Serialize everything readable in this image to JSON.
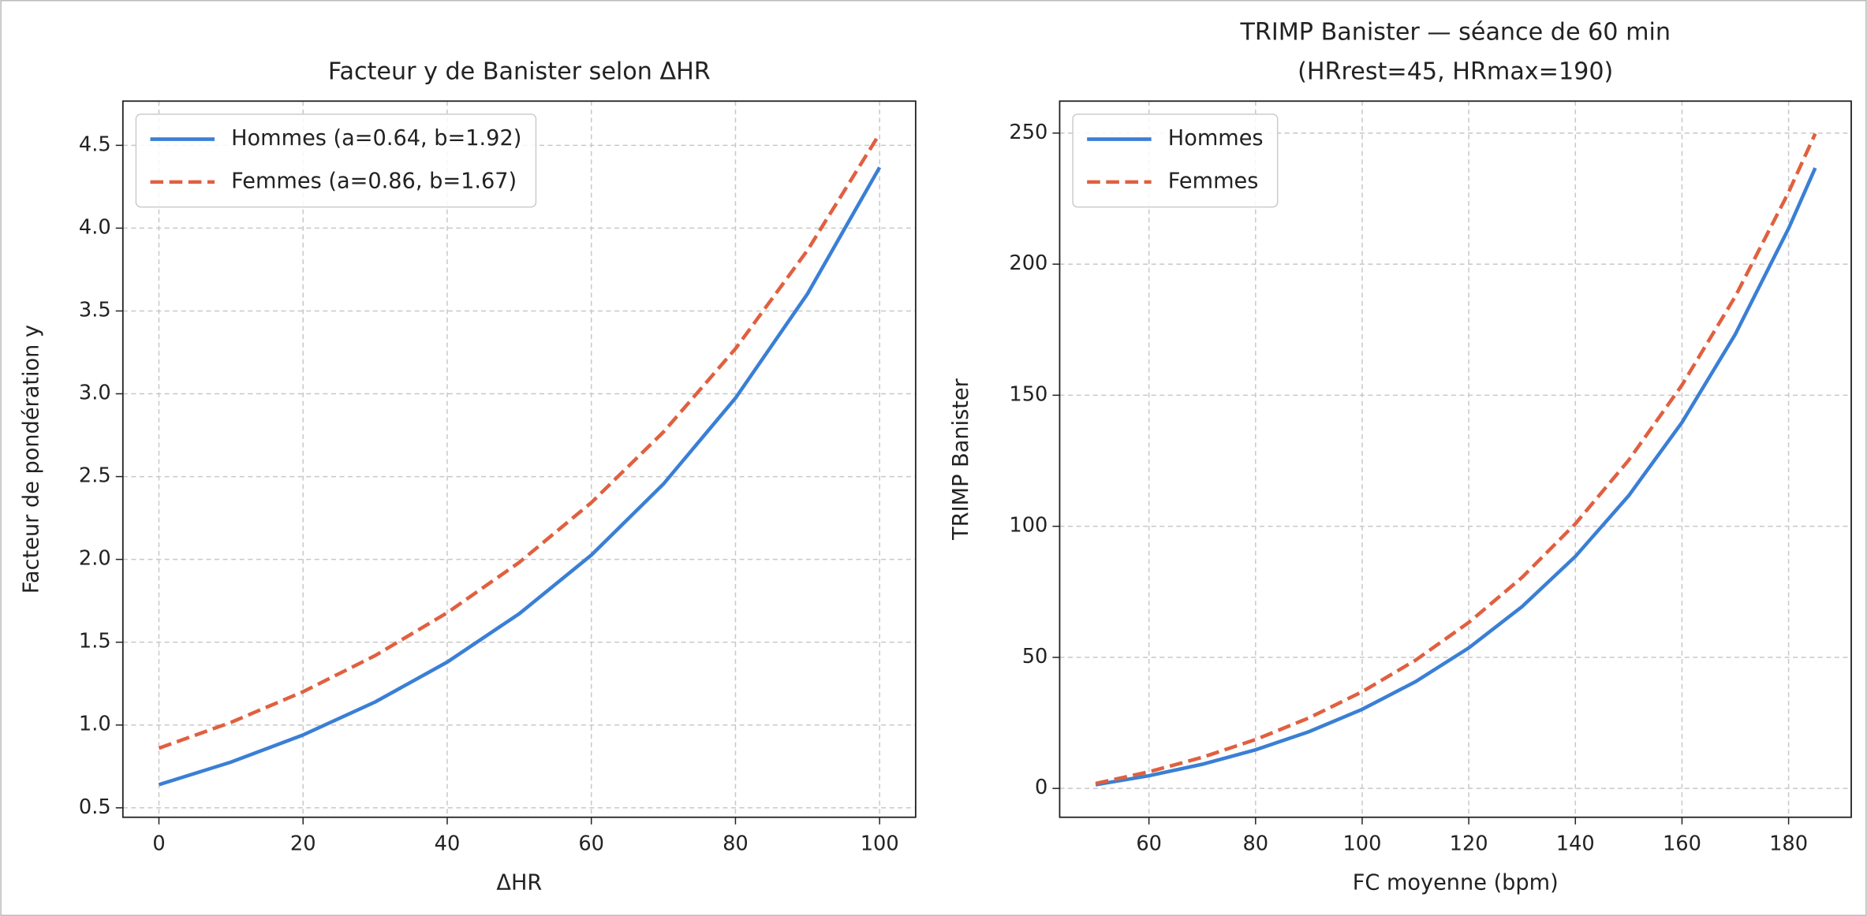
{
  "chart_data": [
    {
      "type": "line",
      "title": "Facteur y de Banister selon ΔHR",
      "xlabel": "ΔHR",
      "ylabel": "Facteur de pondération y",
      "x": [
        0,
        10,
        20,
        30,
        40,
        50,
        60,
        70,
        80,
        90,
        100
      ],
      "series": [
        {
          "name": "Hommes (a=0.64, b=1.92)",
          "color": "#3a7fd5",
          "linestyle": "solid",
          "values": [
            0.64,
            0.776,
            0.94,
            1.139,
            1.38,
            1.672,
            2.026,
            2.455,
            2.974,
            3.604,
            4.367
          ]
        },
        {
          "name": "Femmes (a=0.86, b=1.67)",
          "color": "#e0603f",
          "linestyle": "dashed",
          "values": [
            0.86,
            1.016,
            1.201,
            1.419,
            1.678,
            1.982,
            2.343,
            2.769,
            3.272,
            3.867,
            4.57
          ]
        }
      ],
      "xlim": [
        -5,
        105
      ],
      "ylim": [
        0.443,
        4.767
      ],
      "xticks": [
        0,
        20,
        40,
        60,
        80,
        100
      ],
      "yticks": [
        0.5,
        {
          "value": 1,
          "label": "1.0"
        },
        1.5,
        {
          "value": 2,
          "label": "2.0"
        },
        2.5,
        {
          "value": 3,
          "label": "3.0"
        },
        3.5,
        {
          "value": 4,
          "label": "4.0"
        },
        4.5
      ],
      "grid": true,
      "legend": "upper-left"
    },
    {
      "type": "line",
      "title": "TRIMP Banister — séance de 60 min",
      "subtitle": "(HRrest=45, HRmax=190)",
      "xlabel": "FC moyenne (bpm)",
      "ylabel": "TRIMP Banister",
      "x": [
        50,
        60,
        70,
        80,
        90,
        100,
        110,
        120,
        130,
        140,
        150,
        160,
        170,
        180,
        185
      ],
      "series": [
        {
          "name": "Hommes",
          "color": "#3a7fd5",
          "linestyle": "solid",
          "values": [
            1.415,
            4.845,
            9.219,
            14.73,
            21.63,
            30.18,
            40.71,
            53.62,
            69.37,
            88.51,
            111.68,
            139.63,
            173.26,
            213.62,
            236.7
          ]
        },
        {
          "name": "Femmes",
          "color": "#e0603f",
          "linestyle": "dashed",
          "values": [
            1.885,
            6.345,
            11.866,
            18.64,
            26.89,
            36.88,
            48.9,
            63.31,
            80.51,
            100.97,
            125.22,
            153.88,
            187.69,
            227.45,
            249.8
          ]
        }
      ],
      "xlim": [
        43.25,
        191.75
      ],
      "ylim": [
        -11,
        262.2
      ],
      "xticks": [
        60,
        80,
        100,
        120,
        140,
        160,
        180
      ],
      "yticks": [
        0,
        50,
        100,
        150,
        200,
        250
      ],
      "grid": true,
      "legend": "upper-left"
    }
  ]
}
